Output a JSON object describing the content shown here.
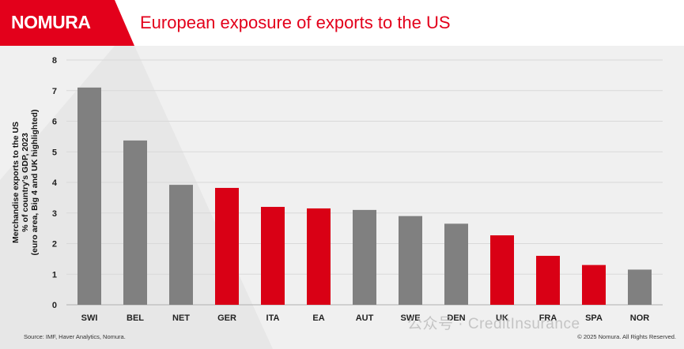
{
  "header": {
    "logo": "NOMURA",
    "title": "European exposure of exports to the US"
  },
  "footer": {
    "source": "Source: IMF, Haver Analytics, Nomura.",
    "copyright": "© 2025 Nomura. All Rights Reserved."
  },
  "watermark": "公众号 · CreditInsurance",
  "colors": {
    "brand_red": "#e3001b",
    "bar_red": "#d90015",
    "bar_grey": "#808080",
    "background": "#f0f0f0"
  },
  "chart_data": {
    "type": "bar",
    "categories": [
      "SWI",
      "BEL",
      "NET",
      "GER",
      "ITA",
      "EA",
      "AUT",
      "SWE",
      "DEN",
      "UK",
      "FRA",
      "SPA",
      "NOR"
    ],
    "values": [
      7.1,
      5.37,
      3.92,
      3.82,
      3.2,
      3.15,
      3.1,
      2.9,
      2.65,
      2.27,
      1.6,
      1.3,
      1.15
    ],
    "highlighted": [
      false,
      false,
      false,
      true,
      true,
      true,
      false,
      false,
      false,
      true,
      true,
      true,
      false
    ],
    "ylabel_lines": [
      "Merchandise exports to the US",
      "% of country's GDP, 2023",
      "(euro area, Big 4 and UK highlighted)"
    ],
    "ylim": [
      0,
      8
    ],
    "yticks": [
      0,
      1,
      2,
      3,
      4,
      5,
      6,
      7,
      8
    ],
    "grid": true
  }
}
